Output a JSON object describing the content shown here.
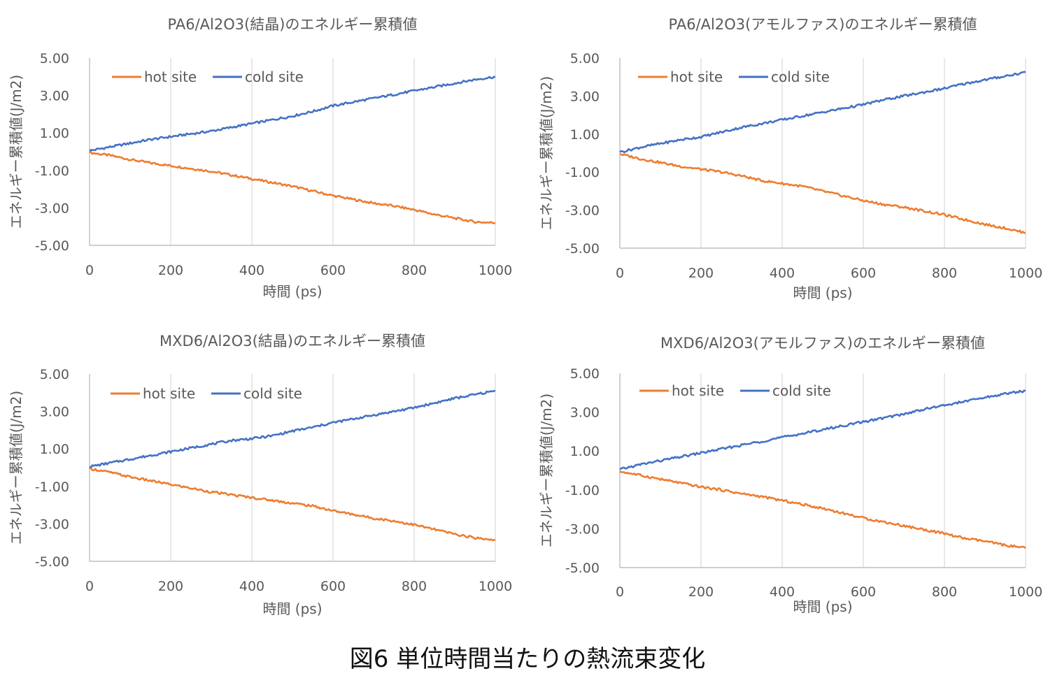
{
  "figure_caption": "図6 単位時間当たりの熱流束変化",
  "colors": {
    "hot": "#ED7D31",
    "cold": "#4472C4",
    "grid": "#d9d9d9",
    "axis": "#bfbfbf",
    "text": "#595959"
  },
  "chart_data": [
    {
      "type": "line",
      "title": "PA6/Al2O3(結晶)のエネルギー累積値",
      "xlabel": "時間 (ps)",
      "ylabel": "エネルギー累積値(J/m2)",
      "xlim": [
        0,
        1000
      ],
      "ylim": [
        -5,
        5
      ],
      "xticks": [
        "0",
        "200",
        "400",
        "600",
        "800",
        "1000"
      ],
      "yticks": [
        "5.00",
        "3.00",
        "1.00",
        "-1.00",
        "-3.00",
        "-5.00"
      ],
      "grid": true,
      "legend": "top-left",
      "x": [
        0,
        50,
        100,
        150,
        200,
        250,
        300,
        350,
        400,
        450,
        500,
        550,
        600,
        650,
        700,
        750,
        800,
        850,
        900,
        950,
        1000
      ],
      "series": [
        {
          "name": "hot site",
          "color": "#ED7D31",
          "values": [
            -0.05,
            -0.2,
            -0.42,
            -0.6,
            -0.75,
            -0.9,
            -1.05,
            -1.25,
            -1.45,
            -1.65,
            -1.85,
            -2.1,
            -2.35,
            -2.55,
            -2.75,
            -2.9,
            -3.1,
            -3.35,
            -3.55,
            -3.75,
            -3.8
          ]
        },
        {
          "name": "cold site",
          "color": "#4472C4",
          "values": [
            0.05,
            0.25,
            0.45,
            0.65,
            0.8,
            0.95,
            1.1,
            1.3,
            1.5,
            1.7,
            1.9,
            2.15,
            2.45,
            2.65,
            2.85,
            3.05,
            3.25,
            3.45,
            3.65,
            3.85,
            4.0
          ]
        }
      ]
    },
    {
      "type": "line",
      "title": "PA6/Al2O3(アモルファス)のエネルギー累積値",
      "xlabel": "時間 (ps)",
      "ylabel": "エネルギー累積値(J/m2)",
      "xlim": [
        0,
        1000
      ],
      "ylim": [
        -5,
        5
      ],
      "xticks": [
        "0",
        "200",
        "400",
        "600",
        "800",
        "1000"
      ],
      "yticks": [
        "5.00",
        "3.00",
        "1.00",
        "-1.00",
        "-3.00",
        "-5.00"
      ],
      "grid": true,
      "legend": "top-left",
      "x": [
        0,
        50,
        100,
        150,
        200,
        250,
        300,
        350,
        400,
        450,
        500,
        550,
        600,
        650,
        700,
        750,
        800,
        850,
        900,
        950,
        1000
      ],
      "series": [
        {
          "name": "hot site",
          "color": "#ED7D31",
          "values": [
            -0.05,
            -0.3,
            -0.5,
            -0.7,
            -0.85,
            -1.0,
            -1.2,
            -1.45,
            -1.6,
            -1.75,
            -2.0,
            -2.25,
            -2.5,
            -2.7,
            -2.85,
            -3.05,
            -3.25,
            -3.5,
            -3.75,
            -3.95,
            -4.2
          ]
        },
        {
          "name": "cold site",
          "color": "#4472C4",
          "values": [
            0.05,
            0.3,
            0.5,
            0.7,
            0.85,
            1.1,
            1.35,
            1.55,
            1.75,
            1.95,
            2.15,
            2.35,
            2.55,
            2.8,
            3.0,
            3.2,
            3.4,
            3.65,
            3.85,
            4.05,
            4.25
          ]
        }
      ]
    },
    {
      "type": "line",
      "title": "MXD6/Al2O3(結晶)のエネルギー累積値",
      "xlabel": "時間 (ps)",
      "ylabel": "エネルギー累積値(J/m2)",
      "xlim": [
        0,
        1000
      ],
      "ylim": [
        -5,
        5
      ],
      "xticks": [
        "0",
        "200",
        "400",
        "600",
        "800",
        "1000"
      ],
      "yticks": [
        "5.00",
        "3.00",
        "1.00",
        "-1.00",
        "-3.00",
        "-5.00"
      ],
      "grid": true,
      "legend": "top-left",
      "x": [
        0,
        50,
        100,
        150,
        200,
        250,
        300,
        350,
        400,
        450,
        500,
        550,
        600,
        650,
        700,
        750,
        800,
        850,
        900,
        950,
        1000
      ],
      "series": [
        {
          "name": "hot site",
          "color": "#ED7D31",
          "values": [
            -0.05,
            -0.25,
            -0.5,
            -0.7,
            -0.9,
            -1.1,
            -1.3,
            -1.45,
            -1.6,
            -1.75,
            -1.9,
            -2.05,
            -2.3,
            -2.5,
            -2.7,
            -2.85,
            -3.05,
            -3.3,
            -3.55,
            -3.75,
            -3.85
          ]
        },
        {
          "name": "cold site",
          "color": "#4472C4",
          "values": [
            0.05,
            0.25,
            0.45,
            0.65,
            0.85,
            1.05,
            1.25,
            1.45,
            1.55,
            1.7,
            1.95,
            2.15,
            2.4,
            2.6,
            2.8,
            3.0,
            3.2,
            3.45,
            3.7,
            3.9,
            4.1
          ]
        }
      ]
    },
    {
      "type": "line",
      "title": "MXD6/Al2O3(アモルファス)のエネルギー累積値",
      "xlabel": "時間 (ps)",
      "ylabel": "エネルギー累積値(J/m2)",
      "xlim": [
        0,
        1000
      ],
      "ylim": [
        -5,
        5
      ],
      "xticks": [
        "0",
        "200",
        "400",
        "600",
        "800",
        "1000"
      ],
      "yticks": [
        "5.00",
        "3.00",
        "1.00",
        "-1.00",
        "-3.00",
        "-5.00"
      ],
      "grid": true,
      "legend": "top-left",
      "x": [
        0,
        50,
        100,
        150,
        200,
        250,
        300,
        350,
        400,
        450,
        500,
        550,
        600,
        650,
        700,
        750,
        800,
        850,
        900,
        950,
        1000
      ],
      "series": [
        {
          "name": "hot site",
          "color": "#ED7D31",
          "values": [
            -0.05,
            -0.25,
            -0.45,
            -0.65,
            -0.85,
            -1.0,
            -1.2,
            -1.35,
            -1.55,
            -1.75,
            -1.95,
            -2.2,
            -2.45,
            -2.65,
            -2.85,
            -3.05,
            -3.25,
            -3.5,
            -3.65,
            -3.85,
            -4.0
          ]
        },
        {
          "name": "cold site",
          "color": "#4472C4",
          "values": [
            0.05,
            0.3,
            0.5,
            0.7,
            0.9,
            1.1,
            1.3,
            1.5,
            1.7,
            1.9,
            2.1,
            2.3,
            2.5,
            2.7,
            2.9,
            3.15,
            3.35,
            3.55,
            3.75,
            3.95,
            4.1
          ]
        }
      ]
    }
  ]
}
